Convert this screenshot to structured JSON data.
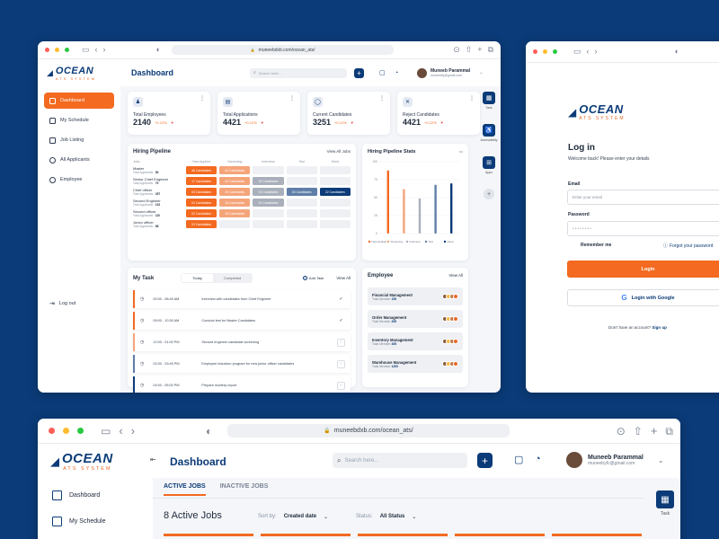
{
  "brand": {
    "name": "OCEAN",
    "tagline": "ATS SYSTEM"
  },
  "win1": {
    "url": "muneebdxb.com/ocean_ats/",
    "title": "Dashboard",
    "search_placeholder": "Search here...",
    "user": {
      "name": "Muneeb Parammal",
      "email": "muneebfy@gmail.com"
    },
    "sidebar": [
      "Dashboard",
      "My Schedule",
      "Job Listing",
      "All Applicants",
      "Employee"
    ],
    "logout": "Log out",
    "stats": [
      {
        "label": "Total Employees",
        "value": "2140",
        "delta": "+0.12%"
      },
      {
        "label": "Total Applications",
        "value": "4421",
        "delta": "+0.12%"
      },
      {
        "label": "Current Candidates",
        "value": "3251",
        "delta": "+0.12%"
      },
      {
        "label": "Reject Candidates",
        "value": "4421",
        "delta": "+0.12%"
      }
    ],
    "pipeline": {
      "title": "Hiring Pipeline",
      "view_all": "View All Jobs",
      "headers": [
        "Jobs",
        "New Applied",
        "Screening",
        "Interview",
        "Test",
        "Hired"
      ],
      "rows": [
        {
          "job": "Master",
          "sub": "Total Applicants",
          "count": "80",
          "cells": [
            "46 Candidates",
            "04 Candidates",
            "",
            "",
            ""
          ]
        },
        {
          "job": "Senior Chief Engineer",
          "sub": "Total Applicants",
          "count": "70",
          "cells": [
            "17 Candidates",
            "04 Candidates",
            "15 Candidates",
            "",
            ""
          ]
        },
        {
          "job": "Chief officer",
          "sub": "Total Applicants",
          "count": "257",
          "cells": [
            "03 Candidates",
            "26 Candidates",
            "03 Candidates",
            "43 Candidates",
            "22 Candidates"
          ]
        },
        {
          "job": "Second Engineer",
          "sub": "Total Applicants",
          "count": "102",
          "cells": [
            "04 Candidates",
            "15 Candidates",
            "03 Candidates",
            "",
            ""
          ]
        },
        {
          "job": "Second officer",
          "sub": "Total Applicants",
          "count": "110",
          "cells": [
            "02 Candidates",
            "15 Candidates",
            "",
            "",
            ""
          ]
        },
        {
          "job": "Junior officer",
          "sub": "Total Applicants",
          "count": "68",
          "cells": [
            "03 Candidates",
            "",
            "",
            "",
            ""
          ]
        }
      ]
    },
    "stats_chart": {
      "title": "Hiring Pipeline Stats",
      "more": "•••",
      "ticks": [
        "100",
        "75",
        "50",
        "25",
        "0"
      ],
      "legend": [
        "New Applied",
        "Screening",
        "Interview",
        "Test",
        "Hired"
      ]
    },
    "task": {
      "title": "My Task",
      "tabs": [
        "Today",
        "Completed"
      ],
      "add": "Add Task",
      "view_all": "View All",
      "rows": [
        {
          "time": "00:00 - 08:45 AM",
          "text": "Interview with candidates from Chief Engineer"
        },
        {
          "time": "09:00 - 10:30 AM",
          "text": "Conduct test for Master Candidates"
        },
        {
          "time": "12:00 - 01:00 PM",
          "text": "Second engineer candidate screening"
        },
        {
          "time": "02:00 - 03:45 PM",
          "text": "Employee induction program for new junior officer candidates"
        },
        {
          "time": "04:00 - 05:00 PM",
          "text": "Prepare monthly report"
        }
      ]
    },
    "employee": {
      "title": "Employee",
      "view_all": "View All",
      "rows": [
        {
          "dept": "Financial Management",
          "sub": "Total Member",
          "count": "155"
        },
        {
          "dept": "Order Management",
          "sub": "Total Member",
          "count": "255"
        },
        {
          "dept": "Inventory Management",
          "sub": "Total Member",
          "count": "455"
        },
        {
          "dept": "Warehouse Management",
          "sub": "Total Member",
          "count": "1200"
        }
      ]
    },
    "rail": [
      "Task",
      "Accessibility",
      "Apps"
    ]
  },
  "chart_data": {
    "type": "bar",
    "title": "Hiring Pipeline Stats",
    "categories": [
      "New Applied",
      "Screening",
      "Interview",
      "Test",
      "Hired"
    ],
    "values": [
      88,
      62,
      49,
      68,
      70
    ],
    "ylim": [
      0,
      100
    ],
    "colors": [
      "#f36a20",
      "#f5a47a",
      "#a9b0bb",
      "#5f7ea8",
      "#0b3b78"
    ]
  },
  "win2": {
    "title": "Log in",
    "subtitle": "Welcome back! Please enter your details",
    "email_label": "Email",
    "email_placeholder": "Enter your email",
    "password_label": "Password",
    "password_placeholder": "••••••••",
    "remember": "Remember me",
    "forgot": "Forgot your password",
    "login": "Login",
    "google": "Login with Google",
    "no_account": "Don't have an account?",
    "signup": "Sign up"
  },
  "win3": {
    "url": "muneebdxb.com/ocean_ats/",
    "title": "Dashboard",
    "search_placeholder": "Search here...",
    "user": {
      "name": "Muneeb Parammal",
      "email": "muneebyfc@gmail.com"
    },
    "sidebar": [
      "Dashboard",
      "My Schedule"
    ],
    "tabs": [
      "ACTIVE JOBS",
      "INACTIVE JOBS"
    ],
    "heading": "8 Active Jobs",
    "sort_label": "Sort by:",
    "sort_value": "Created date",
    "status_label": "Status:",
    "status_value": "All Status",
    "rail": "Task"
  }
}
